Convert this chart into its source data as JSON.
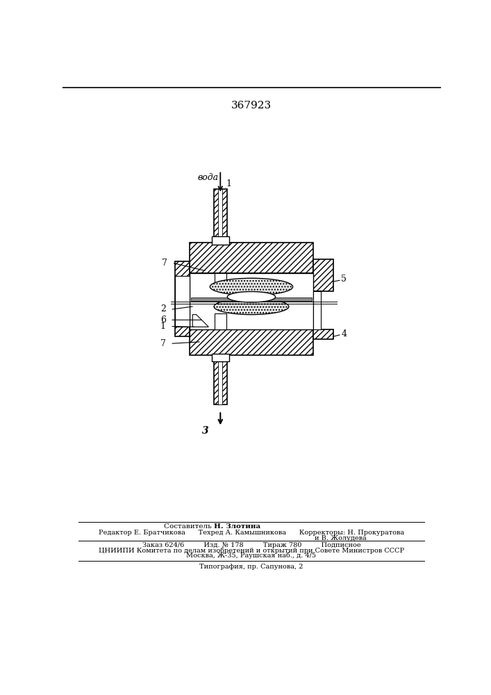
{
  "patent_number": "367923",
  "bg_color": "#ffffff",
  "voda_label": "вода",
  "labels": {
    "1": "1",
    "2": "2",
    "3": "3",
    "4": "4",
    "5": "5",
    "6": "6",
    "7": "7"
  },
  "footer_composer": "Составитель",
  "footer_composer_name": "Н. Злотина",
  "footer_row2": "Редактор Е. Братчикова      Техред А. Камышникова      Корректоры: Н. Прокуратова",
  "footer_row2b": "и В. Жолудева",
  "footer_row3": "Заказ 624/6         Изд. № 178         Тираж 780         Подписное",
  "footer_row4": "ЦНИИПИ Комитета по делам изобретений и открытий при Совете Министров СССР",
  "footer_row5": "Москва, Ж-35, Раушская наб., д. 4/5",
  "footer_typo": "Типография, пр. Сапунова, 2"
}
